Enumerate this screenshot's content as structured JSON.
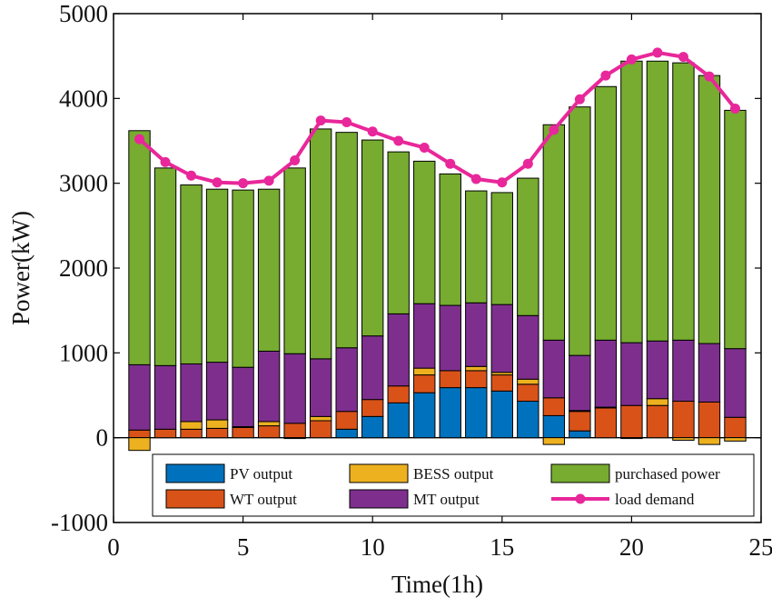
{
  "chart_data": {
    "type": "bar",
    "stacked": true,
    "title": "",
    "xlabel": "Time(1h)",
    "ylabel": "Power(kW)",
    "xlim": [
      0,
      25
    ],
    "ylim": [
      -1000,
      5000
    ],
    "xticks": [
      0,
      5,
      10,
      15,
      20,
      25
    ],
    "yticks": [
      -1000,
      0,
      1000,
      2000,
      3000,
      4000,
      5000
    ],
    "x": [
      1,
      2,
      3,
      4,
      5,
      6,
      7,
      8,
      9,
      10,
      11,
      12,
      13,
      14,
      15,
      16,
      17,
      18,
      19,
      20,
      21,
      22,
      23,
      24
    ],
    "series": [
      {
        "name": "PV output",
        "color": "#0072BD",
        "values": [
          0,
          0,
          0,
          0,
          0,
          0,
          0,
          0,
          100,
          250,
          410,
          530,
          590,
          590,
          550,
          430,
          260,
          80,
          0,
          0,
          0,
          0,
          0,
          0
        ]
      },
      {
        "name": "WT output",
        "color": "#D95319",
        "values": [
          90,
          100,
          100,
          110,
          120,
          140,
          170,
          200,
          210,
          200,
          200,
          210,
          200,
          200,
          190,
          200,
          210,
          230,
          350,
          380,
          380,
          430,
          420,
          240
        ]
      },
      {
        "name": "BESS output",
        "color": "#EDB120",
        "values": [
          -150,
          0,
          90,
          100,
          10,
          50,
          -10,
          50,
          0,
          0,
          0,
          80,
          0,
          50,
          30,
          60,
          -80,
          10,
          10,
          -10,
          80,
          -30,
          -80,
          -40
        ]
      },
      {
        "name": "MT output",
        "color": "#7E2F8E",
        "values": [
          770,
          750,
          680,
          680,
          700,
          830,
          820,
          680,
          750,
          750,
          850,
          760,
          770,
          750,
          800,
          750,
          680,
          650,
          790,
          740,
          680,
          720,
          690,
          810
        ]
      },
      {
        "name": "purchased power",
        "color": "#77AC30",
        "values": [
          2760,
          2330,
          2110,
          2040,
          2090,
          1910,
          2190,
          2710,
          2540,
          2310,
          1910,
          1680,
          1550,
          1320,
          1320,
          1620,
          2540,
          2930,
          2990,
          3320,
          3300,
          3270,
          3160,
          2810
        ]
      }
    ],
    "line_series": {
      "name": "load demand",
      "color": "#E8279A",
      "values": [
        3520,
        3250,
        3090,
        3010,
        3000,
        3030,
        3270,
        3740,
        3720,
        3610,
        3500,
        3420,
        3230,
        3050,
        3010,
        3230,
        3630,
        3990,
        4270,
        4460,
        4540,
        4490,
        4260,
        3880
      ]
    },
    "legend": {
      "placement": "bottom-right",
      "entries": [
        "PV output",
        "WT output",
        "BESS output",
        "MT output",
        "purchased power",
        "load demand"
      ]
    }
  }
}
